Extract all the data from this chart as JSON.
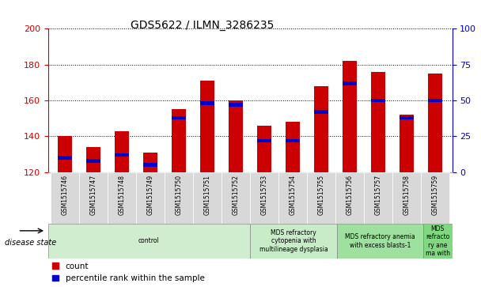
{
  "title": "GDS5622 / ILMN_3286235",
  "samples": [
    "GSM1515746",
    "GSM1515747",
    "GSM1515748",
    "GSM1515749",
    "GSM1515750",
    "GSM1515751",
    "GSM1515752",
    "GSM1515753",
    "GSM1515754",
    "GSM1515755",
    "GSM1515756",
    "GSM1515757",
    "GSM1515758",
    "GSM1515759"
  ],
  "counts": [
    140,
    134,
    143,
    131,
    155,
    171,
    160,
    146,
    148,
    168,
    182,
    176,
    152,
    175
  ],
  "percentile_ranks": [
    10,
    8,
    12,
    5,
    38,
    48,
    47,
    22,
    22,
    42,
    62,
    50,
    38,
    50
  ],
  "ylim_left": [
    120,
    200
  ],
  "ylim_right": [
    0,
    100
  ],
  "yticks_left": [
    120,
    140,
    160,
    180,
    200
  ],
  "yticks_right": [
    0,
    25,
    50,
    75,
    100
  ],
  "bar_color_red": "#cc0000",
  "bar_color_blue": "#0000cc",
  "blue_bar_height": 3,
  "disease_groups": [
    {
      "label": "control",
      "start": 0,
      "end": 7,
      "color": "#d0edd0"
    },
    {
      "label": "MDS refractory\ncytopenia with\nmultilineage dysplasia",
      "start": 7,
      "end": 10,
      "color": "#c8ebc8"
    },
    {
      "label": "MDS refractory anemia\nwith excess blasts-1",
      "start": 10,
      "end": 13,
      "color": "#9ee09e"
    },
    {
      "label": "MDS\nrefracto\nry ane\nma with",
      "start": 13,
      "end": 14,
      "color": "#80d880"
    }
  ],
  "disease_state_label": "disease state",
  "legend_count": "count",
  "legend_percentile": "percentile rank within the sample",
  "left_axis_color": "#cc0000",
  "right_axis_color": "#0000cc"
}
